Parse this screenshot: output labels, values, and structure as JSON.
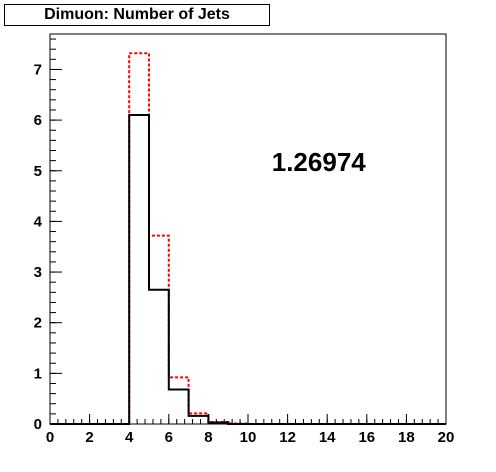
{
  "chart_data": {
    "type": "histogram",
    "title": "Dimuon: Number of Jets",
    "annotation": "1.26974",
    "xlim": [
      0,
      20
    ],
    "ylim": [
      0,
      7.7
    ],
    "x_ticks": [
      0,
      2,
      4,
      6,
      8,
      10,
      12,
      14,
      16,
      18,
      20
    ],
    "y_ticks": [
      0,
      1,
      2,
      3,
      4,
      5,
      6,
      7
    ],
    "bin_edges": [
      0,
      1,
      2,
      3,
      4,
      5,
      6,
      7,
      8,
      9,
      10,
      11,
      12,
      13,
      14,
      15,
      16,
      17,
      18,
      19,
      20
    ],
    "grid": false,
    "series": [
      {
        "style": "solid",
        "color": "#000000",
        "values": [
          0,
          0,
          0,
          0,
          6.1,
          2.65,
          0.68,
          0.16,
          0.03,
          0,
          0,
          0,
          0,
          0,
          0,
          0,
          0,
          0,
          0,
          0
        ]
      },
      {
        "style": "dashed",
        "color": "#ff0000",
        "values": [
          0,
          0,
          0,
          0,
          7.32,
          3.72,
          0.92,
          0.21,
          0.04,
          0.01,
          0,
          0,
          0,
          0,
          0,
          0,
          0,
          0,
          0,
          0
        ]
      }
    ]
  }
}
